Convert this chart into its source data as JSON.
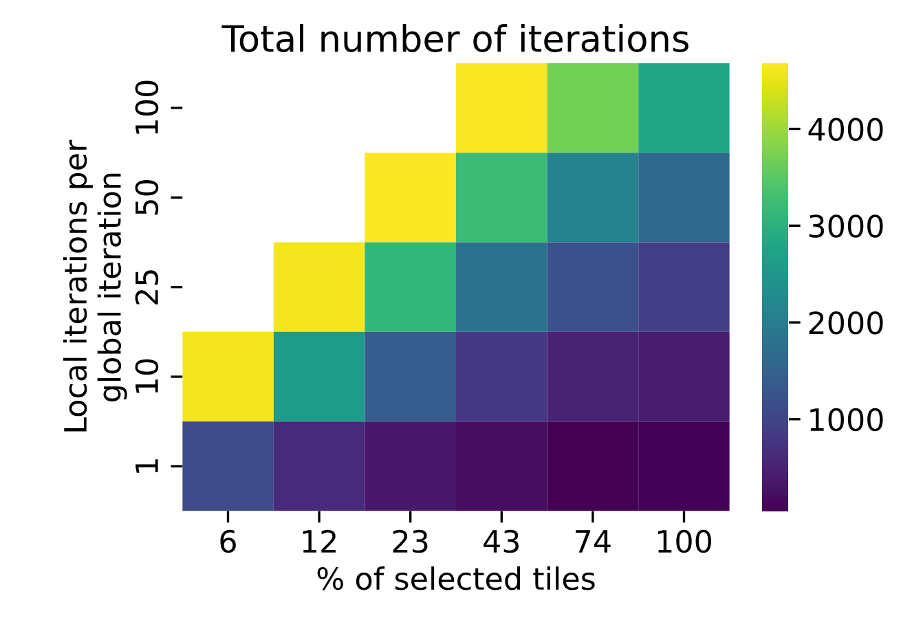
{
  "chart_data": {
    "type": "heatmap",
    "title": "Total number of iterations",
    "xlabel": "% of selected tiles",
    "ylabel": "Local iterations per\nglobal iteration",
    "categories": [
      "6",
      "12",
      "23",
      "43",
      "74",
      "100"
    ],
    "y_categories": [
      "100",
      "50",
      "25",
      "10",
      "1"
    ],
    "cells": [
      [
        null,
        null,
        null,
        4650,
        3700,
        2800
      ],
      [
        null,
        null,
        4650,
        3200,
        2100,
        1600
      ],
      [
        null,
        4600,
        3100,
        1800,
        1200,
        900
      ],
      [
        4600,
        2600,
        1400,
        800,
        500,
        400
      ],
      [
        1100,
        600,
        350,
        200,
        60,
        80
      ]
    ],
    "clim": [
      50,
      4680
    ],
    "cticks": [
      1000,
      2000,
      3000,
      4000
    ]
  }
}
